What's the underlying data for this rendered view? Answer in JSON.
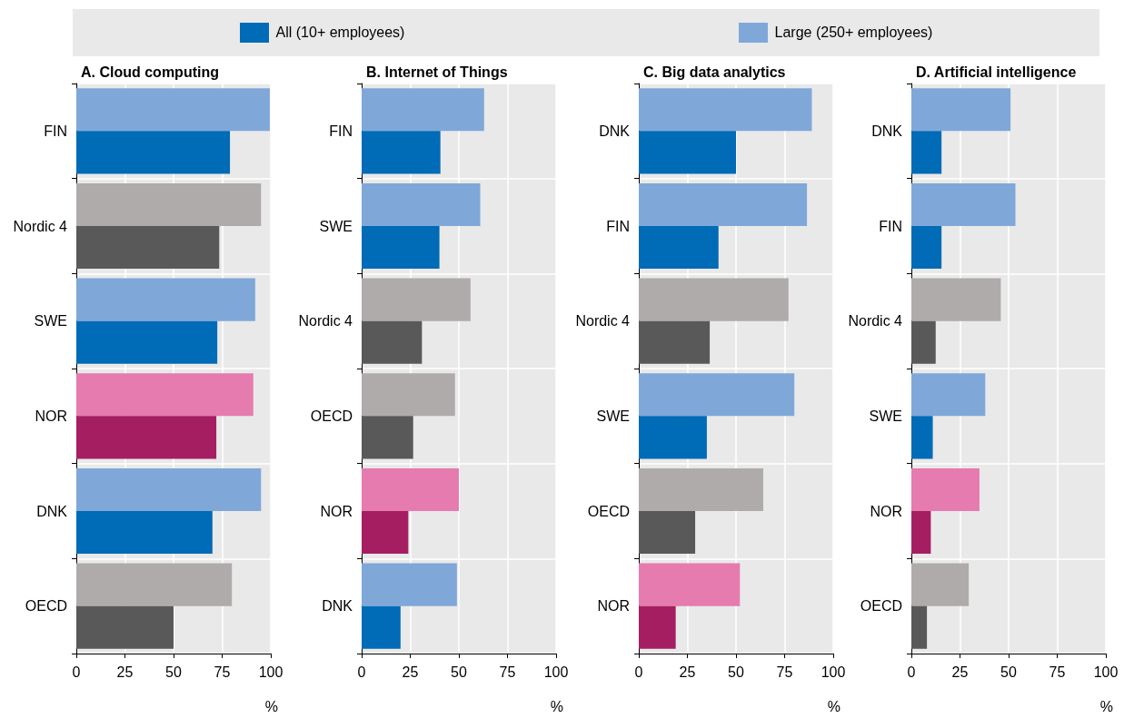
{
  "chart_data": [
    {
      "type": "bar",
      "orientation": "horizontal",
      "title": "A. Cloud computing",
      "xlabel": "%",
      "legend": "top",
      "grid": true,
      "categories": [
        "FIN",
        "Nordic 4",
        "SWE",
        "NOR",
        "DNK",
        "OECD"
      ],
      "xlim": [
        0,
        100
      ],
      "xticks": [
        0,
        25,
        50,
        75,
        100
      ],
      "series": [
        {
          "name": "All (10+ employees)",
          "color": "#006bb6",
          "colors": [
            "#006bb6",
            "#595959",
            "#006bb6",
            "#a61e62",
            "#006bb6",
            "#595959"
          ],
          "values": [
            79,
            73.5,
            72.5,
            72,
            70,
            50
          ]
        },
        {
          "name": "Large (250+ employees)",
          "color": "#7fa8d9",
          "colors": [
            "#7fa8d9",
            "#afabab",
            "#7fa8d9",
            "#e57bae",
            "#7fa8d9",
            "#afabab"
          ],
          "values": [
            99.5,
            95,
            92,
            91,
            95,
            80
          ]
        }
      ]
    },
    {
      "type": "bar",
      "orientation": "horizontal",
      "title": "B. Internet of Things",
      "xlabel": "%",
      "grid": true,
      "categories": [
        "FIN",
        "SWE",
        "Nordic 4",
        "OECD",
        "NOR",
        "DNK"
      ],
      "xlim": [
        0,
        100
      ],
      "xticks": [
        0,
        25,
        50,
        75,
        100
      ],
      "series": [
        {
          "color": "#006bb6",
          "colors": [
            "#006bb6",
            "#006bb6",
            "#595959",
            "#595959",
            "#a61e62",
            "#006bb6"
          ],
          "values": [
            40.5,
            40,
            31,
            26.5,
            24,
            20
          ]
        },
        {
          "color": "#7fa8d9",
          "colors": [
            "#7fa8d9",
            "#7fa8d9",
            "#afabab",
            "#afabab",
            "#e57bae",
            "#7fa8d9"
          ],
          "values": [
            63,
            61,
            56,
            48,
            50,
            49
          ]
        }
      ]
    },
    {
      "type": "bar",
      "orientation": "horizontal",
      "title": "C. Big data analytics",
      "xlabel": "%",
      "grid": true,
      "categories": [
        "DNK",
        "FIN",
        "Nordic 4",
        "SWE",
        "OECD",
        "NOR"
      ],
      "xlim": [
        0,
        100
      ],
      "xticks": [
        0,
        25,
        50,
        75,
        100
      ],
      "series": [
        {
          "color": "#006bb6",
          "colors": [
            "#006bb6",
            "#006bb6",
            "#595959",
            "#006bb6",
            "#595959",
            "#a61e62"
          ],
          "values": [
            50,
            41,
            36.5,
            35,
            29,
            19
          ]
        },
        {
          "color": "#7fa8d9",
          "colors": [
            "#7fa8d9",
            "#7fa8d9",
            "#afabab",
            "#7fa8d9",
            "#afabab",
            "#e57bae"
          ],
          "values": [
            89,
            86.5,
            77,
            80,
            64,
            52
          ]
        }
      ]
    },
    {
      "type": "bar",
      "orientation": "horizontal",
      "title": "D. Artificial intelligence",
      "xlabel": "%",
      "grid": true,
      "categories": [
        "DNK",
        "FIN",
        "Nordic 4",
        "SWE",
        "NOR",
        "OECD"
      ],
      "xlim": [
        0,
        100
      ],
      "xticks": [
        0,
        25,
        50,
        75,
        100
      ],
      "series": [
        {
          "color": "#006bb6",
          "colors": [
            "#006bb6",
            "#006bb6",
            "#595959",
            "#006bb6",
            "#a61e62",
            "#595959"
          ],
          "values": [
            15.5,
            15.5,
            12.5,
            11,
            10,
            8
          ]
        },
        {
          "color": "#7fa8d9",
          "colors": [
            "#7fa8d9",
            "#7fa8d9",
            "#afabab",
            "#7fa8d9",
            "#e57bae",
            "#afabab"
          ],
          "values": [
            51,
            53.5,
            46,
            38,
            35,
            29.5
          ]
        }
      ]
    }
  ]
}
